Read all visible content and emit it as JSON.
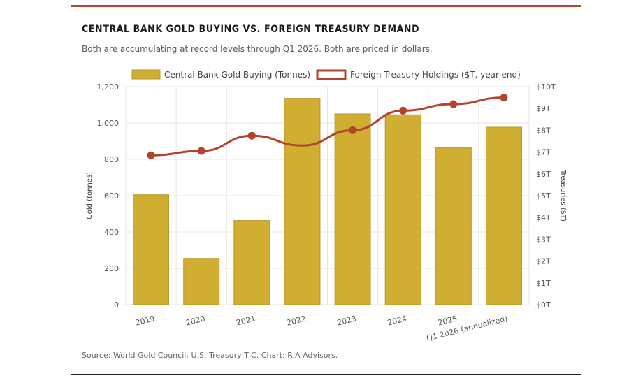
{
  "header": {
    "title": "CENTRAL BANK GOLD BUYING VS. FOREIGN TREASURY DEMAND",
    "subtitle": "Both are accumulating at record levels through Q1 2026. Both are priced in dollars."
  },
  "footer": {
    "source": "Source: World Gold Council; U.S. Treasury TIC. Chart: RIA Advisors."
  },
  "colors": {
    "accent": "#b04a34",
    "gold_bar": "#cfae32",
    "gold_bar_border": "#b8962a",
    "treasury_line": "#b5412f",
    "grid": "#e6e6e6"
  },
  "chart_data": {
    "type": "bar",
    "categories": [
      "2019",
      "2020",
      "2021",
      "2022",
      "2023",
      "2024",
      "2025",
      "Q1 2026 (annualized)"
    ],
    "series": [
      {
        "name": "Central Bank Gold Buying (Tonnes)",
        "type": "bar",
        "axis": "left",
        "values": [
          605,
          255,
          463,
          1136,
          1050,
          1045,
          863,
          977
        ]
      },
      {
        "name": "Foreign Treasury Holdings ($T, year-end)",
        "type": "line",
        "axis": "right",
        "values": [
          6.85,
          7.05,
          7.75,
          7.3,
          8.0,
          8.9,
          9.2,
          9.5
        ]
      }
    ],
    "left_axis": {
      "label": "Gold (tonnes)",
      "range": [
        0,
        1200
      ],
      "ticks": [
        "0",
        "200",
        "400",
        "600",
        "800",
        "1,000",
        "1,200"
      ]
    },
    "right_axis": {
      "label": "Treasuries ($T)",
      "range": [
        0,
        10
      ],
      "ticks": [
        "$0T",
        "$1T",
        "$2T",
        "$3T",
        "$4T",
        "$5T",
        "$6T",
        "$7T",
        "$8T",
        "$9T",
        "$10T"
      ]
    },
    "grid": true,
    "legend_position": "top"
  }
}
